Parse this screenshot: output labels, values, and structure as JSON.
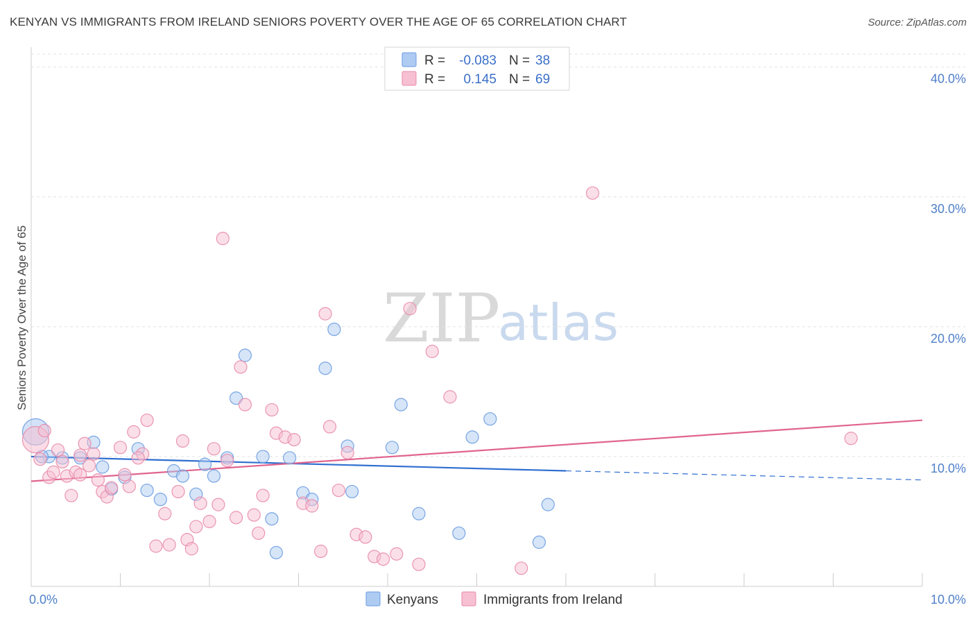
{
  "title": "KENYAN VS IMMIGRANTS FROM IRELAND SENIORS POVERTY OVER THE AGE OF 65 CORRELATION CHART",
  "source": "Source: ZipAtlas.com",
  "watermark": {
    "zip": "ZIP",
    "atlas": "atlas"
  },
  "legend_top": [
    {
      "r_label": "R =",
      "r_value": "-0.083",
      "n_label": "N =",
      "n_value": "38",
      "color": "#aecbf2",
      "stroke": "#6a9be0"
    },
    {
      "r_label": "R =",
      "r_value": "0.145",
      "n_label": "N =",
      "n_value": "69",
      "color": "#f7c0d2",
      "stroke": "#e88aa8"
    }
  ],
  "legend_bottom": [
    {
      "label": "Kenyans",
      "color": "#aecbf2",
      "stroke": "#6a9be0"
    },
    {
      "label": "Immigrants from Ireland",
      "color": "#f7c0d2",
      "stroke": "#e88aa8"
    }
  ],
  "chart_data": {
    "type": "scatter",
    "title": "KENYAN VS IMMIGRANTS FROM IRELAND SENIORS POVERTY OVER THE AGE OF 65 CORRELATION CHART",
    "xlabel": "",
    "ylabel": "Seniors Poverty Over the Age of 65",
    "xlim": [
      0,
      10
    ],
    "ylim": [
      0,
      41
    ],
    "x_tick_labels": [
      {
        "value": 0,
        "label": "0.0%"
      },
      {
        "value": 10,
        "label": "10.0%"
      }
    ],
    "y_tick_labels": [
      {
        "value": 10,
        "label": "10.0%"
      },
      {
        "value": 20,
        "label": "20.0%"
      },
      {
        "value": 30,
        "label": "30.0%"
      },
      {
        "value": 40,
        "label": "40.0%"
      }
    ],
    "grid": true,
    "legend_position": "top-center",
    "series": [
      {
        "name": "Kenyans",
        "color": "#6a9be0",
        "fill": "#aecbf2",
        "trend": {
          "x": [
            0,
            6
          ],
          "y": [
            10.0,
            8.9
          ],
          "dashed_to": [
            10,
            8.2
          ]
        },
        "points": [
          [
            0.05,
            11.9
          ],
          [
            0.2,
            10.0
          ],
          [
            0.35,
            9.9
          ],
          [
            0.55,
            9.9
          ],
          [
            0.7,
            11.1
          ],
          [
            0.8,
            9.2
          ],
          [
            0.9,
            7.5
          ],
          [
            1.05,
            8.4
          ],
          [
            1.2,
            10.6
          ],
          [
            1.3,
            7.4
          ],
          [
            1.45,
            6.7
          ],
          [
            1.6,
            8.9
          ],
          [
            1.7,
            8.5
          ],
          [
            1.85,
            7.1
          ],
          [
            1.95,
            9.4
          ],
          [
            2.05,
            8.5
          ],
          [
            2.2,
            9.9
          ],
          [
            2.3,
            14.5
          ],
          [
            2.4,
            17.8
          ],
          [
            2.6,
            10.0
          ],
          [
            2.7,
            5.2
          ],
          [
            2.75,
            2.6
          ],
          [
            2.9,
            9.9
          ],
          [
            3.05,
            7.2
          ],
          [
            3.15,
            6.7
          ],
          [
            3.3,
            16.8
          ],
          [
            3.4,
            19.8
          ],
          [
            3.55,
            10.8
          ],
          [
            3.6,
            7.3
          ],
          [
            4.05,
            10.7
          ],
          [
            4.15,
            14.0
          ],
          [
            4.35,
            5.6
          ],
          [
            4.8,
            4.1
          ],
          [
            4.95,
            11.5
          ],
          [
            5.15,
            12.9
          ],
          [
            5.7,
            3.4
          ],
          [
            5.8,
            6.3
          ],
          [
            0.12,
            10.0
          ]
        ]
      },
      {
        "name": "Immigrants from Ireland",
        "color": "#e88aa8",
        "fill": "#f7c0d2",
        "trend": {
          "x": [
            0,
            10
          ],
          "y": [
            8.1,
            12.8
          ]
        },
        "points": [
          [
            0.05,
            11.3
          ],
          [
            0.1,
            9.8
          ],
          [
            0.15,
            12.0
          ],
          [
            0.2,
            8.4
          ],
          [
            0.25,
            8.8
          ],
          [
            0.3,
            10.5
          ],
          [
            0.35,
            9.6
          ],
          [
            0.4,
            8.5
          ],
          [
            0.45,
            7.0
          ],
          [
            0.5,
            8.8
          ],
          [
            0.55,
            10.1
          ],
          [
            0.6,
            11.0
          ],
          [
            0.65,
            9.3
          ],
          [
            0.7,
            10.2
          ],
          [
            0.75,
            8.2
          ],
          [
            0.8,
            7.3
          ],
          [
            0.85,
            6.9
          ],
          [
            0.9,
            7.6
          ],
          [
            1.0,
            10.7
          ],
          [
            1.05,
            8.6
          ],
          [
            1.1,
            7.7
          ],
          [
            1.15,
            11.9
          ],
          [
            1.25,
            10.2
          ],
          [
            1.3,
            12.8
          ],
          [
            1.4,
            3.1
          ],
          [
            1.5,
            5.6
          ],
          [
            1.55,
            3.2
          ],
          [
            1.65,
            7.3
          ],
          [
            1.7,
            11.2
          ],
          [
            1.75,
            3.6
          ],
          [
            1.8,
            2.9
          ],
          [
            1.85,
            4.6
          ],
          [
            1.9,
            6.4
          ],
          [
            2.0,
            5.0
          ],
          [
            2.05,
            10.6
          ],
          [
            2.1,
            6.3
          ],
          [
            2.15,
            26.8
          ],
          [
            2.2,
            9.7
          ],
          [
            2.3,
            5.3
          ],
          [
            2.35,
            16.9
          ],
          [
            2.4,
            14.0
          ],
          [
            2.5,
            5.5
          ],
          [
            2.55,
            4.1
          ],
          [
            2.6,
            7.0
          ],
          [
            2.7,
            13.6
          ],
          [
            2.75,
            11.8
          ],
          [
            2.85,
            11.5
          ],
          [
            2.95,
            11.3
          ],
          [
            3.05,
            6.4
          ],
          [
            3.15,
            6.2
          ],
          [
            3.25,
            2.7
          ],
          [
            3.3,
            21.0
          ],
          [
            3.35,
            12.3
          ],
          [
            3.45,
            7.4
          ],
          [
            3.55,
            10.3
          ],
          [
            3.65,
            4.0
          ],
          [
            3.75,
            3.8
          ],
          [
            3.85,
            2.3
          ],
          [
            3.95,
            2.1
          ],
          [
            4.1,
            2.5
          ],
          [
            4.25,
            21.4
          ],
          [
            4.35,
            1.7
          ],
          [
            4.5,
            18.1
          ],
          [
            4.7,
            14.6
          ],
          [
            5.5,
            1.4
          ],
          [
            6.3,
            30.3
          ],
          [
            9.2,
            11.4
          ],
          [
            1.2,
            9.9
          ],
          [
            0.55,
            8.6
          ]
        ]
      }
    ]
  }
}
